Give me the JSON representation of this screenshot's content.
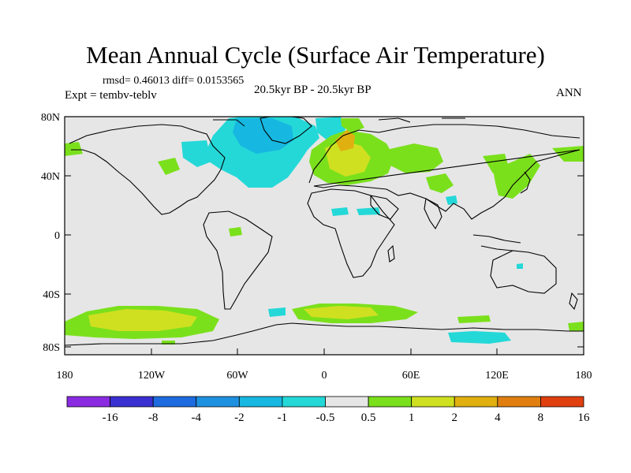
{
  "title": "Mean Annual Cycle (Surface Air Temperature)",
  "stats": "rmsd= 0.46013 diff= 0.0153565",
  "experiment": "Expt = tembv-teblv",
  "center_label": "20.5kyr BP - 20.5kyr BP",
  "season": "ANN",
  "lat_labels": [
    "80N",
    "40N",
    "0",
    "40S",
    "80S"
  ],
  "lon_labels": [
    "180",
    "120W",
    "60W",
    "0",
    "60E",
    "120E",
    "180"
  ],
  "colorbar": {
    "labels": [
      "-16",
      "-8",
      "-4",
      "-2",
      "-1",
      "-0.5",
      "0.5",
      "1",
      "2",
      "4",
      "8",
      "16"
    ],
    "colors": [
      "#8a2be2",
      "#3a2fd0",
      "#1e6be0",
      "#1e90e0",
      "#16b7e0",
      "#24d8d8",
      "#e6e6e6",
      "#7be01c",
      "#cfe020",
      "#e0b010",
      "#e07f10",
      "#e04010"
    ]
  },
  "colors": {
    "ocean_land_neutral": "#e6e6e6",
    "cyan": "#24d8d8",
    "light_blue": "#16b7e0",
    "green": "#7be01c",
    "yellow_green": "#cfe020",
    "orange": "#e0b010"
  }
}
